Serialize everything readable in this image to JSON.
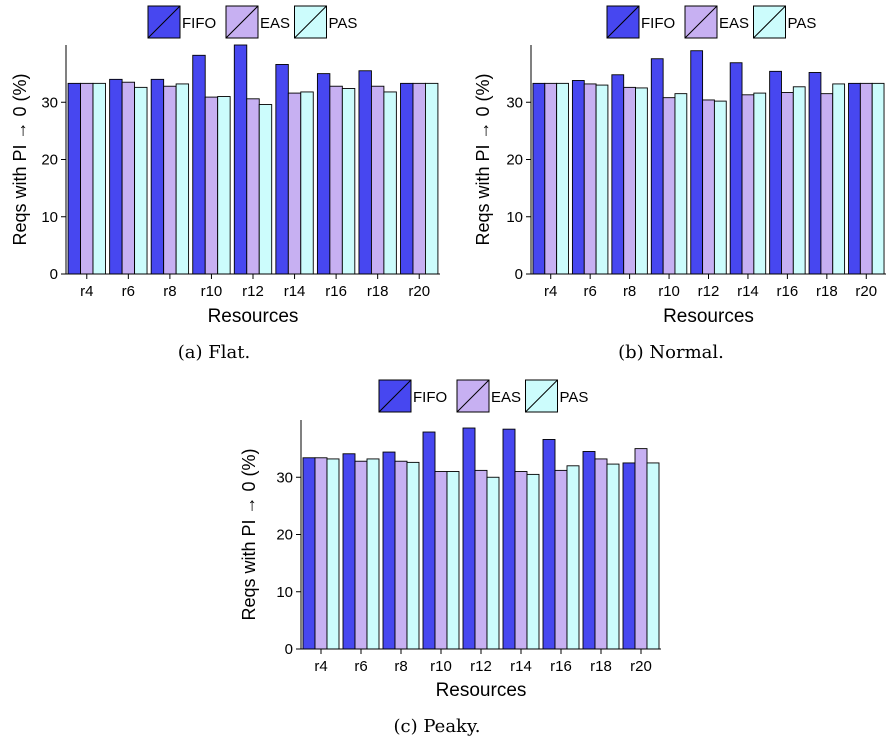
{
  "colors": {
    "FIFO": "#4747f0",
    "EAS": "#c7b0f2",
    "PAS": "#ccfcfc",
    "stroke": "#000000",
    "grid": "#ffffff"
  },
  "chart_data": [
    {
      "type": "bar",
      "caption": "(a) Flat.",
      "xlabel": "Resources",
      "ylabel": "Reqs with PI → 0 (%)",
      "ylim": [
        0,
        40
      ],
      "yticks": [
        0,
        10,
        20,
        30
      ],
      "categories": [
        "r4",
        "r6",
        "r8",
        "r10",
        "r12",
        "r14",
        "r16",
        "r18",
        "r20"
      ],
      "legend": [
        "FIFO",
        "EAS",
        "PAS"
      ],
      "legend_position": "top",
      "series": [
        {
          "name": "FIFO",
          "values": [
            33.3,
            34.0,
            34.0,
            38.2,
            40.0,
            36.6,
            35.0,
            35.5,
            33.3
          ]
        },
        {
          "name": "EAS",
          "values": [
            33.3,
            33.5,
            32.8,
            30.9,
            30.6,
            31.6,
            32.8,
            32.8,
            33.3
          ]
        },
        {
          "name": "PAS",
          "values": [
            33.3,
            32.6,
            33.2,
            31.0,
            29.6,
            31.8,
            32.4,
            31.8,
            33.3
          ]
        }
      ]
    },
    {
      "type": "bar",
      "caption": "(b) Normal.",
      "xlabel": "Resources",
      "ylabel": "Reqs with PI → 0 (%)",
      "ylim": [
        0,
        40
      ],
      "yticks": [
        0,
        10,
        20,
        30
      ],
      "categories": [
        "r4",
        "r6",
        "r8",
        "r10",
        "r12",
        "r14",
        "r16",
        "r18",
        "r20"
      ],
      "legend": [
        "FIFO",
        "EAS",
        "PAS"
      ],
      "legend_position": "top",
      "series": [
        {
          "name": "FIFO",
          "values": [
            33.3,
            33.8,
            34.8,
            37.6,
            39.0,
            36.9,
            35.4,
            35.2,
            33.3
          ]
        },
        {
          "name": "EAS",
          "values": [
            33.3,
            33.2,
            32.6,
            30.8,
            30.4,
            31.3,
            31.7,
            31.5,
            33.3
          ]
        },
        {
          "name": "PAS",
          "values": [
            33.3,
            33.0,
            32.5,
            31.5,
            30.2,
            31.6,
            32.7,
            33.2,
            33.3
          ]
        }
      ]
    },
    {
      "type": "bar",
      "caption": "(c) Peaky.",
      "xlabel": "Resources",
      "ylabel": "Reqs with PI → 0 (%)",
      "ylim": [
        0,
        40
      ],
      "yticks": [
        0,
        10,
        20,
        30
      ],
      "categories": [
        "r4",
        "r6",
        "r8",
        "r10",
        "r12",
        "r14",
        "r16",
        "r18",
        "r20"
      ],
      "legend": [
        "FIFO",
        "EAS",
        "PAS"
      ],
      "legend_position": "top",
      "series": [
        {
          "name": "FIFO",
          "values": [
            33.4,
            34.1,
            34.4,
            37.9,
            38.6,
            38.4,
            36.6,
            34.5,
            32.5
          ]
        },
        {
          "name": "EAS",
          "values": [
            33.4,
            32.8,
            32.8,
            31.0,
            31.2,
            31.0,
            31.2,
            33.2,
            35.0
          ]
        },
        {
          "name": "PAS",
          "values": [
            33.2,
            33.2,
            32.6,
            31.0,
            30.0,
            30.5,
            32.0,
            32.3,
            32.5
          ]
        }
      ]
    }
  ]
}
